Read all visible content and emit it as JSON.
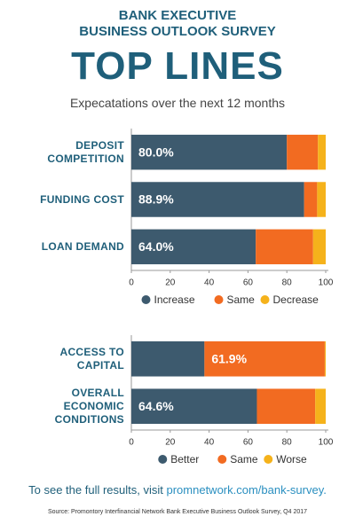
{
  "header": {
    "line1": "BANK EXECUTIVE",
    "line2": "BUSINESS OUTLOOK SURVEY",
    "title": "TOP LINES",
    "subtitle": "Expecatations over the next 12 months"
  },
  "chart_data": [
    {
      "type": "stacked-bar-horizontal",
      "categories": [
        "DEPOSIT COMPETITION",
        "FUNDING COST",
        "LOAN DEMAND"
      ],
      "series": [
        {
          "name": "Increase",
          "color": "#3d5a6e",
          "values": [
            80.0,
            88.9,
            64.0
          ],
          "value_labels": [
            "80.0%",
            "88.9%",
            "64.0%"
          ]
        },
        {
          "name": "Same",
          "color": "#f26b21",
          "values": [
            16.0,
            6.7,
            29.5
          ]
        },
        {
          "name": "Decrease",
          "color": "#f5b21b",
          "values": [
            4.0,
            4.4,
            6.5
          ]
        }
      ],
      "xlim": [
        0,
        100
      ],
      "xticks": [
        0,
        20,
        40,
        60,
        80,
        100
      ]
    },
    {
      "type": "stacked-bar-horizontal",
      "categories": [
        "ACCESS TO CAPITAL",
        "OVERALL ECONOMIC CONDITIONS"
      ],
      "series": [
        {
          "name": "Better",
          "color": "#3d5a6e",
          "values": [
            37.6,
            64.6
          ],
          "value_labels": [
            null,
            "64.6%"
          ]
        },
        {
          "name": "Same",
          "color": "#f26b21",
          "values": [
            61.9,
            30.0
          ],
          "value_labels": [
            "61.9%",
            null
          ]
        },
        {
          "name": "Worse",
          "color": "#f5b21b",
          "values": [
            0.5,
            5.4
          ]
        }
      ],
      "xlim": [
        0,
        100
      ],
      "xticks": [
        0,
        20,
        40,
        60,
        80,
        100
      ]
    }
  ],
  "footer": {
    "text": "To see the full results, visit ",
    "link": "promnetwork.com/bank-survey.",
    "source": "Source: Promontory Interfinancial Network Bank Executive Business Outlook Survey, Q4 2017"
  }
}
